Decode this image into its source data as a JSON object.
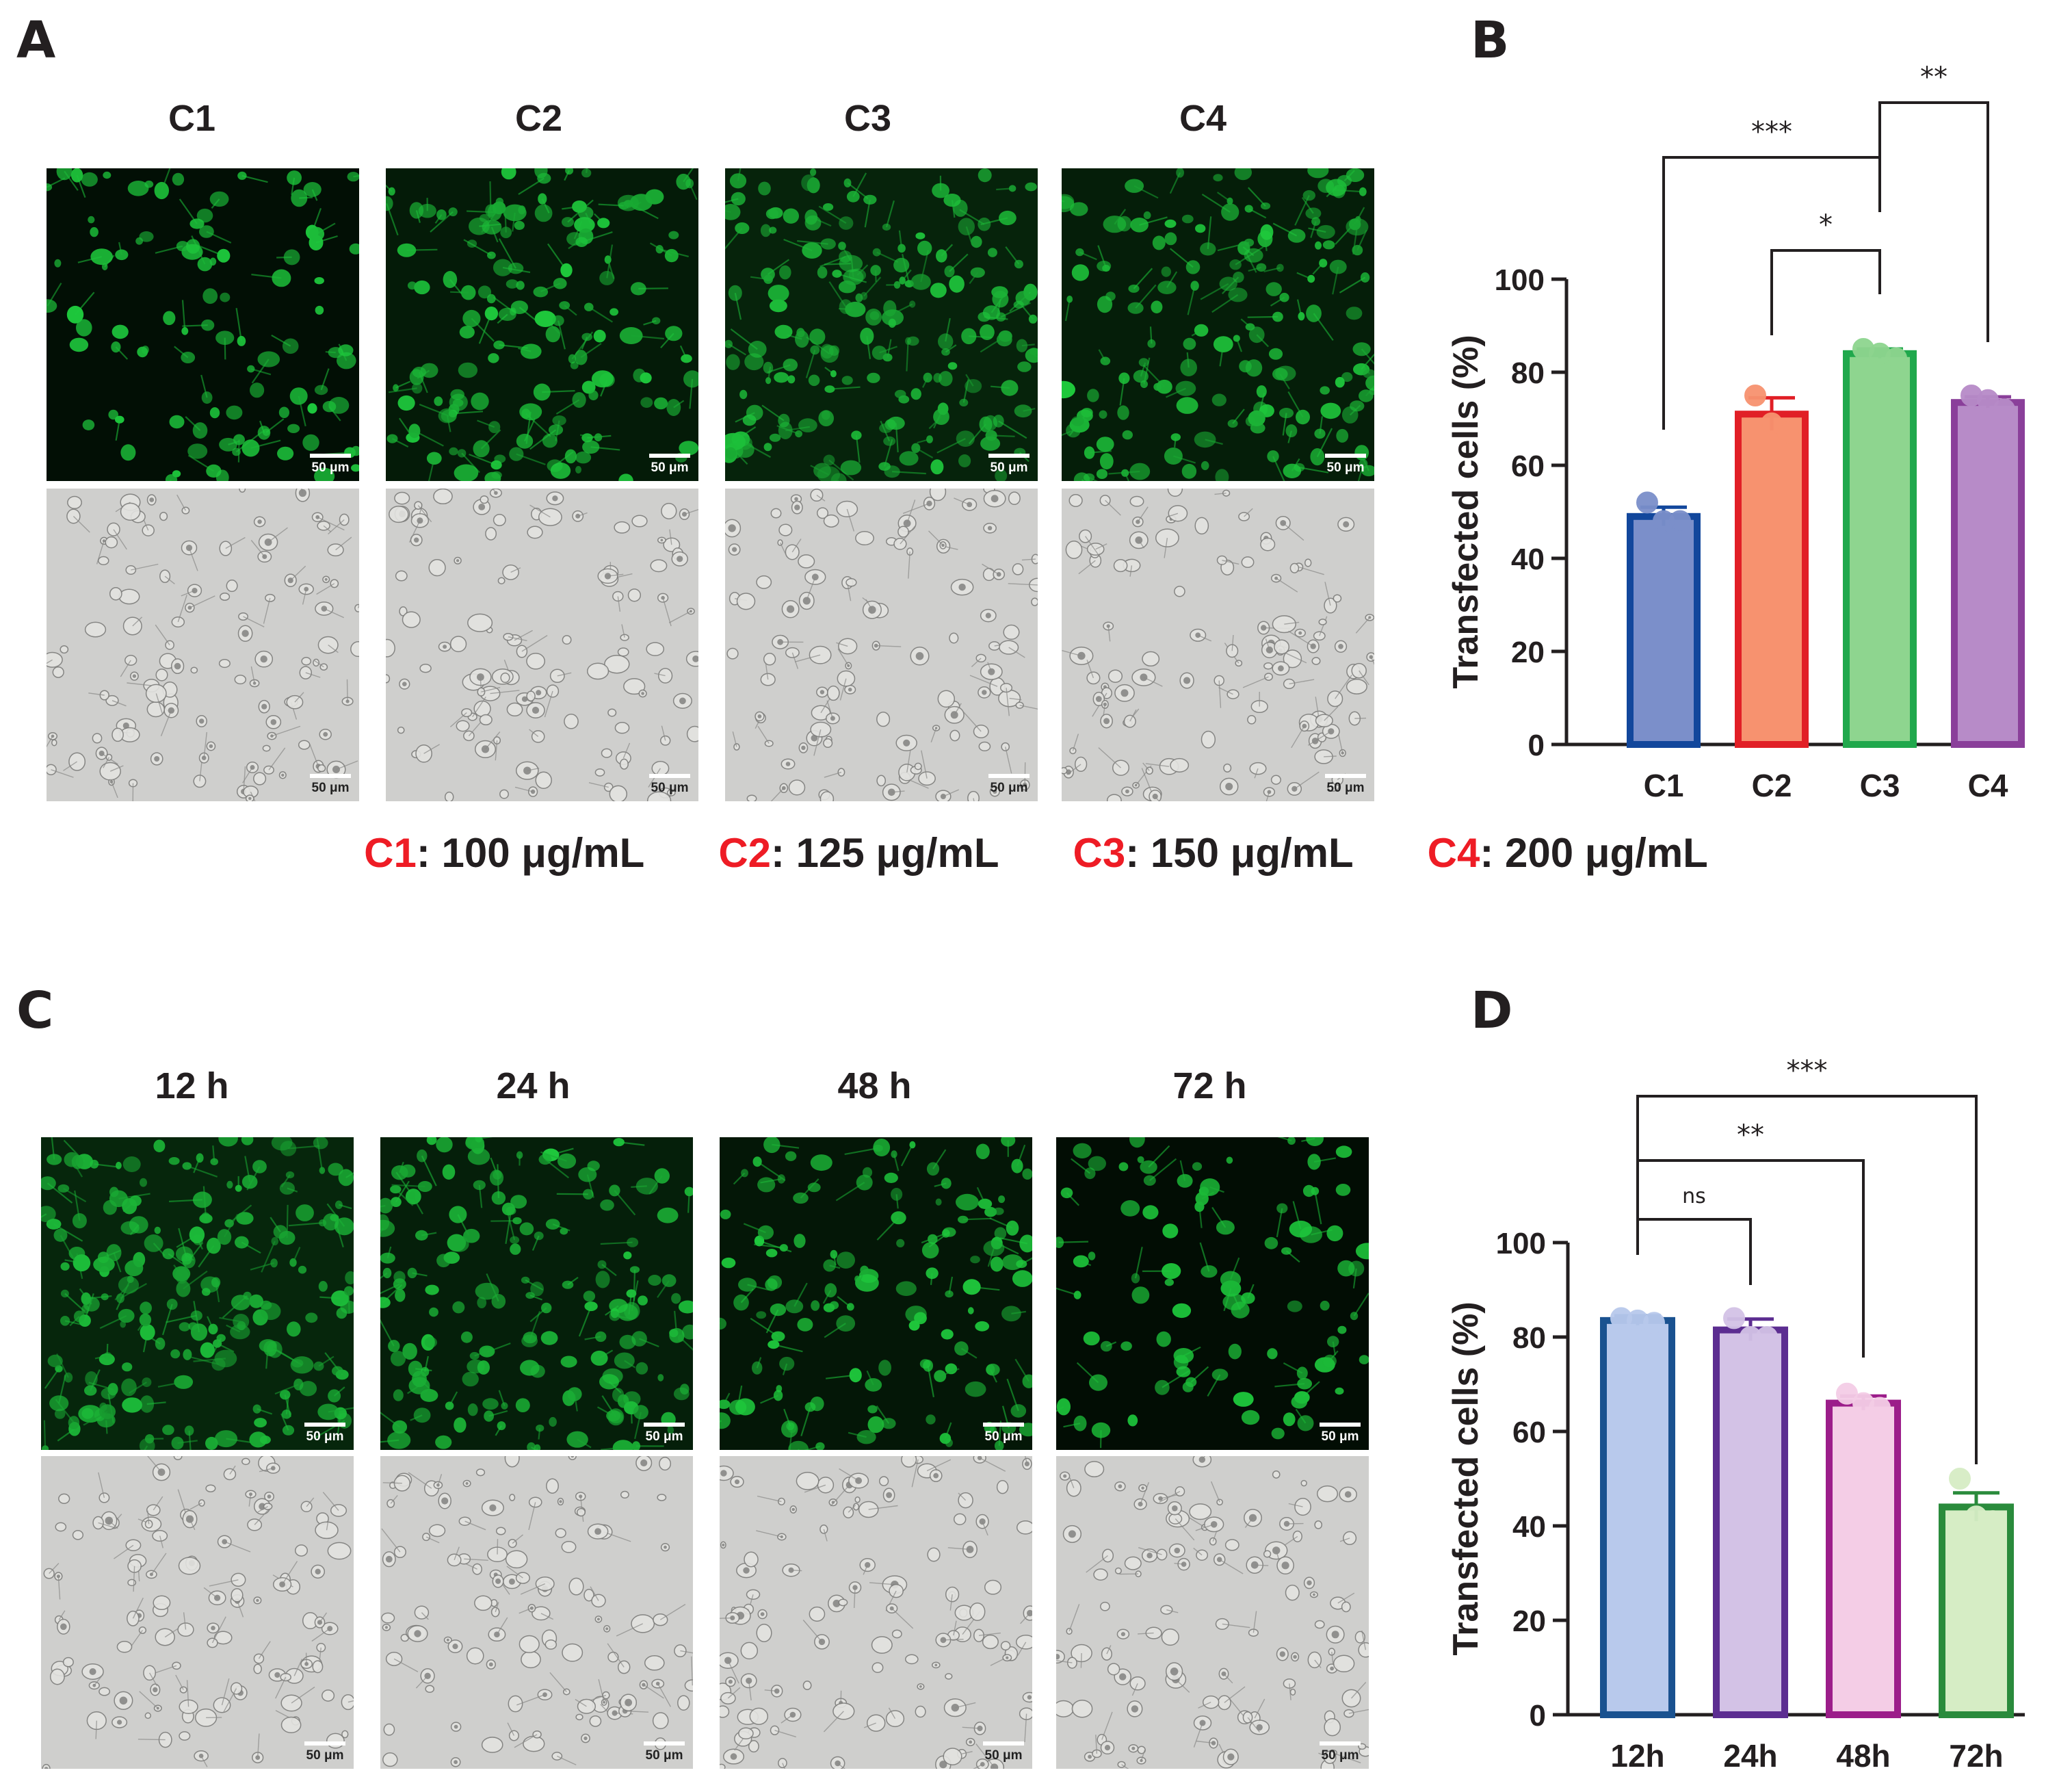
{
  "panels": {
    "A": {
      "label": "A",
      "columns": [
        "C1",
        "C2",
        "C3",
        "C4"
      ],
      "fluor_intensity": [
        0.35,
        0.65,
        0.85,
        0.7
      ],
      "scale_bar": "50 μm"
    },
    "B": {
      "label": "B"
    },
    "C": {
      "label": "C",
      "columns": [
        "12 h",
        "24 h",
        "48 h",
        "72 h"
      ],
      "fluor_intensity": [
        0.9,
        0.75,
        0.55,
        0.3
      ],
      "scale_bar": "50 μm"
    },
    "D": {
      "label": "D"
    }
  },
  "legend": {
    "items": [
      {
        "name": "C1",
        "text": ": 100 μg/mL"
      },
      {
        "name": "C2",
        "text": ": 125 μg/mL"
      },
      {
        "name": "C3",
        "text": ": 150 μg/mL"
      },
      {
        "name": "C4",
        "text": ": 200 μg/mL"
      }
    ],
    "name_color": "#ee1c25"
  },
  "chart_data": [
    {
      "type": "bar",
      "panel": "B",
      "ylabel": "Transfected cells (%)",
      "ylim": [
        0,
        100
      ],
      "yticks": [
        0,
        20,
        40,
        60,
        80,
        100
      ],
      "categories": [
        "C1",
        "C2",
        "C3",
        "C4"
      ],
      "values": [
        49,
        71,
        84,
        73.5
      ],
      "sem": [
        2,
        3.5,
        1,
        1.2
      ],
      "points": [
        [
          52,
          48,
          48
        ],
        [
          75,
          69,
          67
        ],
        [
          85,
          84,
          83
        ],
        [
          75,
          74,
          72
        ]
      ],
      "fill_colors": [
        "#7b8fca",
        "#f7926f",
        "#8ed58f",
        "#b78bc8"
      ],
      "edge_colors": [
        "#12479c",
        "#e11f26",
        "#20a84c",
        "#8a3f9a"
      ],
      "comparisons": [
        {
          "a": "C2",
          "b": "C3",
          "label": "*"
        },
        {
          "a": "C1",
          "b": "C3",
          "label": "***"
        },
        {
          "a": "C3",
          "b": "C4",
          "label": "**"
        }
      ]
    },
    {
      "type": "bar",
      "panel": "D",
      "ylabel": "Transfected cells (%)",
      "ylim": [
        0,
        100
      ],
      "yticks": [
        0,
        20,
        40,
        60,
        80,
        100
      ],
      "categories": [
        "12h",
        "24h",
        "48h",
        "72h"
      ],
      "values": [
        83.5,
        81.5,
        66,
        44
      ],
      "sem": [
        1,
        2.3,
        1.5,
        3
      ],
      "points": [
        [
          84,
          83.5,
          83
        ],
        [
          84,
          80,
          80
        ],
        [
          68,
          66,
          65
        ],
        [
          50,
          42,
          41
        ]
      ],
      "fill_colors": [
        "#b8c9ec",
        "#d3c2e6",
        "#f4cde6",
        "#d6edc5"
      ],
      "edge_colors": [
        "#1a5290",
        "#5c2d91",
        "#9c1d8a",
        "#2a8b3c"
      ],
      "comparisons": [
        {
          "a": "12h",
          "b": "24h",
          "label": "ns"
        },
        {
          "a": "12h",
          "b": "48h",
          "label": "**"
        },
        {
          "a": "12h",
          "b": "72h",
          "label": "***"
        }
      ]
    }
  ]
}
